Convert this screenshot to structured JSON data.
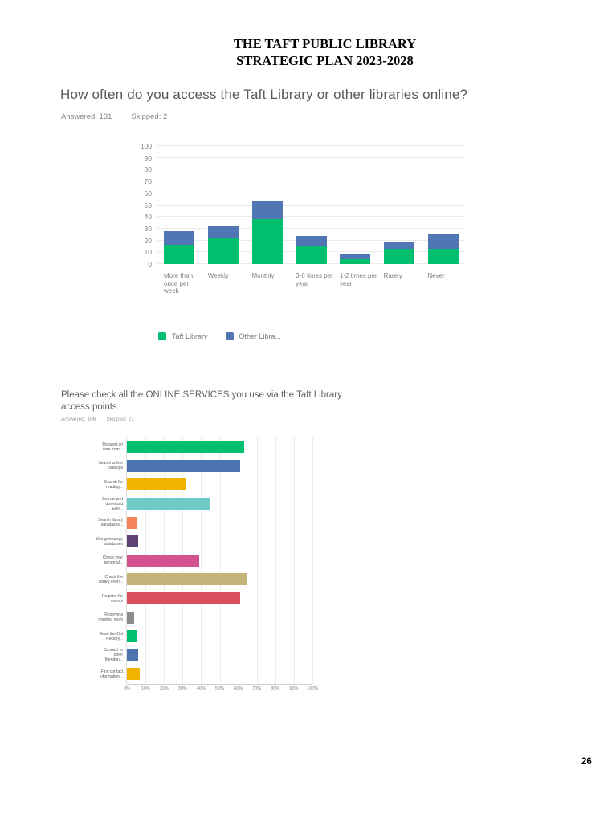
{
  "header": {
    "line1": "THE TAFT PUBLIC LIBRARY",
    "line2": "STRATEGIC PLAN 2023-2028"
  },
  "page": {
    "number": "26"
  },
  "q1_meta": {
    "answered": "Answered: 131",
    "skipped": "Skipped: 2"
  },
  "q2_meta": {
    "answered": "Answered: 106",
    "skipped": "Skipped: 27"
  },
  "chart_data": [
    {
      "type": "bar",
      "stacked": true,
      "orientation": "vertical",
      "title": "How often do you access the Taft Library or other libraries online?",
      "categories": [
        "More than once per week",
        "Weekly",
        "Monthly",
        "3-6 times per year",
        "1-2 times per year",
        "Rarely",
        "Never"
      ],
      "series": [
        {
          "name": "Taft Library",
          "color": "#00BF6F",
          "values": [
            16,
            22,
            38,
            15,
            4,
            13,
            13
          ]
        },
        {
          "name": "Other Libra...",
          "color": "#5076B4",
          "values": [
            12,
            11,
            15,
            9,
            5,
            6,
            13
          ]
        }
      ],
      "ylim": [
        0,
        100
      ],
      "yticks": [
        0,
        10,
        20,
        30,
        40,
        50,
        60,
        70,
        80,
        90,
        100
      ],
      "grid": true,
      "legend_position": "bottom"
    },
    {
      "type": "bar",
      "orientation": "horizontal",
      "title": "Please check all the ONLINE SERVICES you use via the Taft Library access points",
      "categories": [
        "Request an item from...",
        "Search online catalogs",
        "Search for reading...",
        "Borrow and download Ebo...",
        "Search library databases...",
        "Use genealogy databases",
        "Check your personal...",
        "Check the library even...",
        "Register for events",
        "Reserve a meeting room",
        "Read the Old Rectory...",
        "Connect to other Mendon...",
        "Find contact information..."
      ],
      "values": [
        63,
        61,
        32,
        45,
        5,
        6,
        39,
        65,
        61,
        4,
        5,
        6,
        7
      ],
      "unit": "%",
      "colors": [
        "#00BF6F",
        "#4D72B0",
        "#F0B400",
        "#6FC9C4",
        "#F5845C",
        "#5F4378",
        "#D2538F",
        "#C5B479",
        "#D94F5E",
        "#8C8C8C",
        "#00BF6F",
        "#4D72B0",
        "#F0B400"
      ],
      "xlim": [
        0,
        100
      ],
      "xticks": [
        "0%",
        "10%",
        "20%",
        "30%",
        "40%",
        "50%",
        "60%",
        "70%",
        "80%",
        "90%",
        "100%"
      ],
      "grid": true
    }
  ]
}
